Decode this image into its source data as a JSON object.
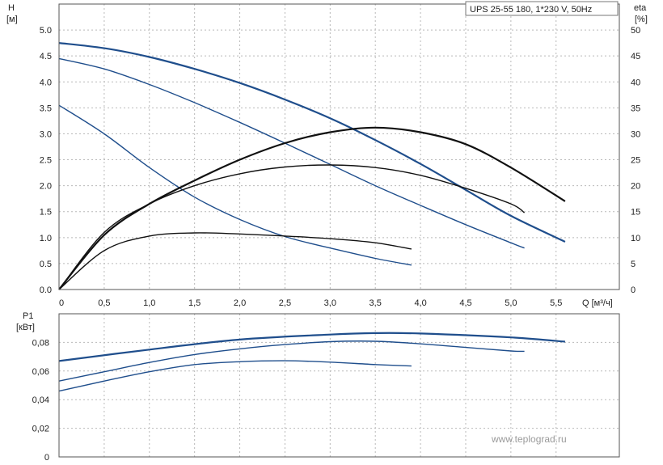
{
  "chart_data": [
    {
      "type": "line",
      "title": "UPS 25-55 180, 1*230 V, 50Hz",
      "xlabel": "Q [м³/ч]",
      "ylabel": [
        "H",
        "[м]"
      ],
      "y2label": [
        "eta",
        "[%]"
      ],
      "xlim": [
        0,
        6.2
      ],
      "ylim": [
        0,
        5.5
      ],
      "y2lim": [
        0,
        55
      ],
      "xticks": [
        "0",
        "0,5",
        "1,0",
        "1,5",
        "2,0",
        "2,5",
        "3,0",
        "3,5",
        "4,0",
        "4,5",
        "5,0",
        "5,5"
      ],
      "yticks": [
        "0.0",
        "0.5",
        "1.0",
        "1.5",
        "2.0",
        "2.5",
        "3.0",
        "3.5",
        "4.0",
        "4.5",
        "5.0"
      ],
      "y2ticks": [
        "0",
        "5",
        "10",
        "15",
        "20",
        "25",
        "30",
        "35",
        "40",
        "45",
        "50"
      ],
      "grid": true,
      "series": [
        {
          "axis": "H",
          "color": "#1f4e8c",
          "points": [
            [
              0,
              4.75
            ],
            [
              0.5,
              4.65
            ],
            [
              1,
              4.48
            ],
            [
              1.5,
              4.25
            ],
            [
              2,
              3.98
            ],
            [
              2.5,
              3.66
            ],
            [
              3,
              3.3
            ],
            [
              3.5,
              2.88
            ],
            [
              4,
              2.42
            ],
            [
              4.5,
              1.92
            ],
            [
              5,
              1.42
            ],
            [
              5.6,
              0.92
            ]
          ]
        },
        {
          "axis": "H",
          "color": "#1f4e8c",
          "points": [
            [
              0,
              4.45
            ],
            [
              0.5,
              4.25
            ],
            [
              1,
              3.95
            ],
            [
              1.5,
              3.6
            ],
            [
              2,
              3.22
            ],
            [
              2.5,
              2.82
            ],
            [
              3,
              2.41
            ],
            [
              3.5,
              2.0
            ],
            [
              4,
              1.62
            ],
            [
              4.5,
              1.25
            ],
            [
              5,
              0.9
            ],
            [
              5.15,
              0.8
            ]
          ]
        },
        {
          "axis": "H",
          "color": "#1f4e8c",
          "points": [
            [
              0,
              3.55
            ],
            [
              0.5,
              3.0
            ],
            [
              1,
              2.35
            ],
            [
              1.5,
              1.78
            ],
            [
              2,
              1.35
            ],
            [
              2.5,
              1.02
            ],
            [
              3,
              0.8
            ],
            [
              3.5,
              0.6
            ],
            [
              3.9,
              0.47
            ]
          ]
        },
        {
          "axis": "eta",
          "color": "#111111",
          "points": [
            [
              0,
              0
            ],
            [
              0.5,
              10.5
            ],
            [
              1,
              16.5
            ],
            [
              1.5,
              21
            ],
            [
              2,
              25
            ],
            [
              2.5,
              28.2
            ],
            [
              3,
              30.3
            ],
            [
              3.5,
              31.2
            ],
            [
              4,
              30.3
            ],
            [
              4.5,
              28
            ],
            [
              5,
              23.5
            ],
            [
              5.6,
              17
            ]
          ]
        },
        {
          "axis": "eta",
          "color": "#111111",
          "points": [
            [
              0,
              0
            ],
            [
              0.5,
              11
            ],
            [
              1,
              16.5
            ],
            [
              1.5,
              20
            ],
            [
              2,
              22.3
            ],
            [
              2.5,
              23.6
            ],
            [
              3,
              24
            ],
            [
              3.5,
              23.5
            ],
            [
              4,
              22
            ],
            [
              4.5,
              19.5
            ],
            [
              5,
              16.5
            ],
            [
              5.15,
              14.8
            ]
          ]
        },
        {
          "axis": "eta",
          "color": "#111111",
          "points": [
            [
              0,
              0
            ],
            [
              0.5,
              7.5
            ],
            [
              1,
              10.3
            ],
            [
              1.5,
              10.9
            ],
            [
              2,
              10.7
            ],
            [
              2.5,
              10.3
            ],
            [
              3,
              9.8
            ],
            [
              3.5,
              9
            ],
            [
              3.9,
              7.8
            ]
          ]
        }
      ]
    },
    {
      "type": "line",
      "xlabel": "",
      "ylabel": [
        "P1",
        "[кВт]"
      ],
      "xlim": [
        0,
        6.2
      ],
      "ylim": [
        0,
        0.1
      ],
      "yticks": [
        "0",
        "0,02",
        "0,04",
        "0,06",
        "0,08"
      ],
      "grid": true,
      "series": [
        {
          "color": "#1f4e8c",
          "points": [
            [
              0,
              0.067
            ],
            [
              1,
              0.075
            ],
            [
              2,
              0.082
            ],
            [
              3,
              0.0855
            ],
            [
              3.5,
              0.0865
            ],
            [
              4,
              0.0862
            ],
            [
              5,
              0.0835
            ],
            [
              5.6,
              0.0805
            ]
          ]
        },
        {
          "color": "#1f4e8c",
          "points": [
            [
              0,
              0.053
            ],
            [
              0.5,
              0.0595
            ],
            [
              1,
              0.066
            ],
            [
              1.5,
              0.0715
            ],
            [
              2,
              0.0755
            ],
            [
              2.5,
              0.0785
            ],
            [
              3,
              0.0805
            ],
            [
              3.5,
              0.0808
            ],
            [
              4,
              0.079
            ],
            [
              4.5,
              0.0765
            ],
            [
              5,
              0.074
            ],
            [
              5.15,
              0.0738
            ]
          ]
        },
        {
          "color": "#1f4e8c",
          "points": [
            [
              0,
              0.046
            ],
            [
              0.5,
              0.053
            ],
            [
              1,
              0.0595
            ],
            [
              1.5,
              0.0645
            ],
            [
              2,
              0.0665
            ],
            [
              2.5,
              0.0672
            ],
            [
              3,
              0.0662
            ],
            [
              3.5,
              0.0645
            ],
            [
              3.9,
              0.0635
            ]
          ]
        }
      ]
    }
  ],
  "watermark": "www.teplograd.ru"
}
